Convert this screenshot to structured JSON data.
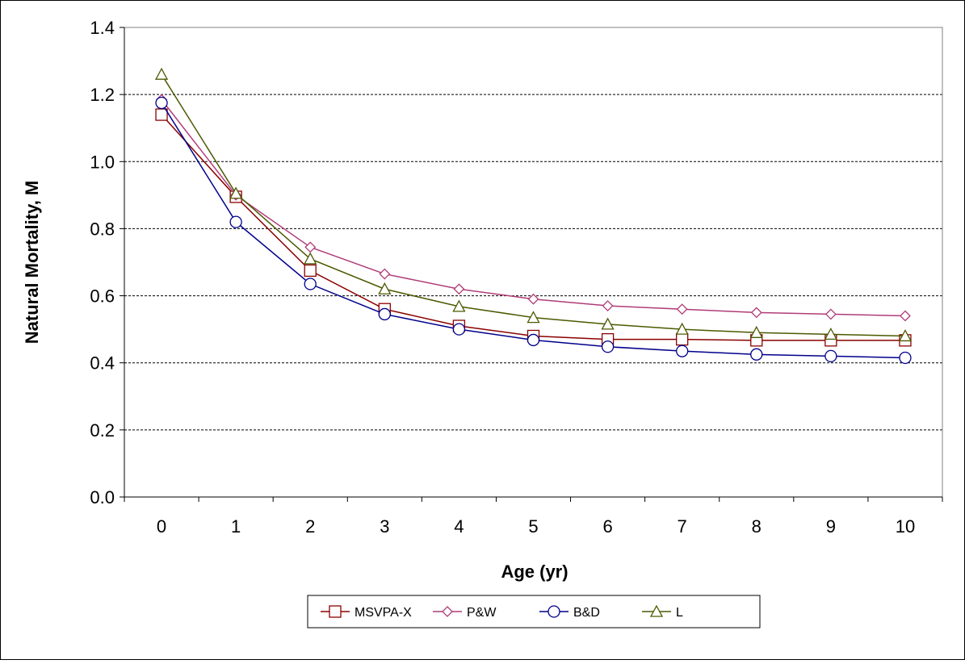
{
  "chart_data": {
    "type": "line",
    "xlabel": "Age (yr)",
    "ylabel": "Natural Mortality, M",
    "x": [
      0,
      1,
      2,
      3,
      4,
      5,
      6,
      7,
      8,
      9,
      10
    ],
    "xlim": [
      -0.5,
      10.5
    ],
    "ylim": [
      0,
      1.4
    ],
    "y_ticks": [
      "0.0",
      "0.2",
      "0.4",
      "0.6",
      "0.8",
      "1.0",
      "1.2",
      "1.4"
    ],
    "x_ticks": [
      "0",
      "1",
      "2",
      "3",
      "4",
      "5",
      "6",
      "7",
      "8",
      "9",
      "10"
    ],
    "grid": "horizontal dashed",
    "legend_position": "bottom",
    "series": [
      {
        "name": "MSVPA-X",
        "color": "#8B0000",
        "marker": "square",
        "values": [
          1.14,
          0.895,
          0.675,
          0.56,
          0.51,
          0.48,
          0.47,
          0.47,
          0.467,
          0.467,
          0.467
        ]
      },
      {
        "name": "P&W",
        "color": "#B03C78",
        "marker": "diamond",
        "values": [
          1.185,
          0.9,
          0.745,
          0.665,
          0.62,
          0.59,
          0.57,
          0.56,
          0.55,
          0.545,
          0.54
        ]
      },
      {
        "name": "B&D",
        "color": "#00008B",
        "marker": "circle",
        "values": [
          1.175,
          0.82,
          0.635,
          0.545,
          0.5,
          0.468,
          0.448,
          0.435,
          0.425,
          0.42,
          0.415
        ]
      },
      {
        "name": "L",
        "color": "#4B5A00",
        "marker": "triangle",
        "values": [
          1.26,
          0.905,
          0.71,
          0.62,
          0.568,
          0.535,
          0.515,
          0.5,
          0.49,
          0.485,
          0.48
        ]
      }
    ]
  }
}
